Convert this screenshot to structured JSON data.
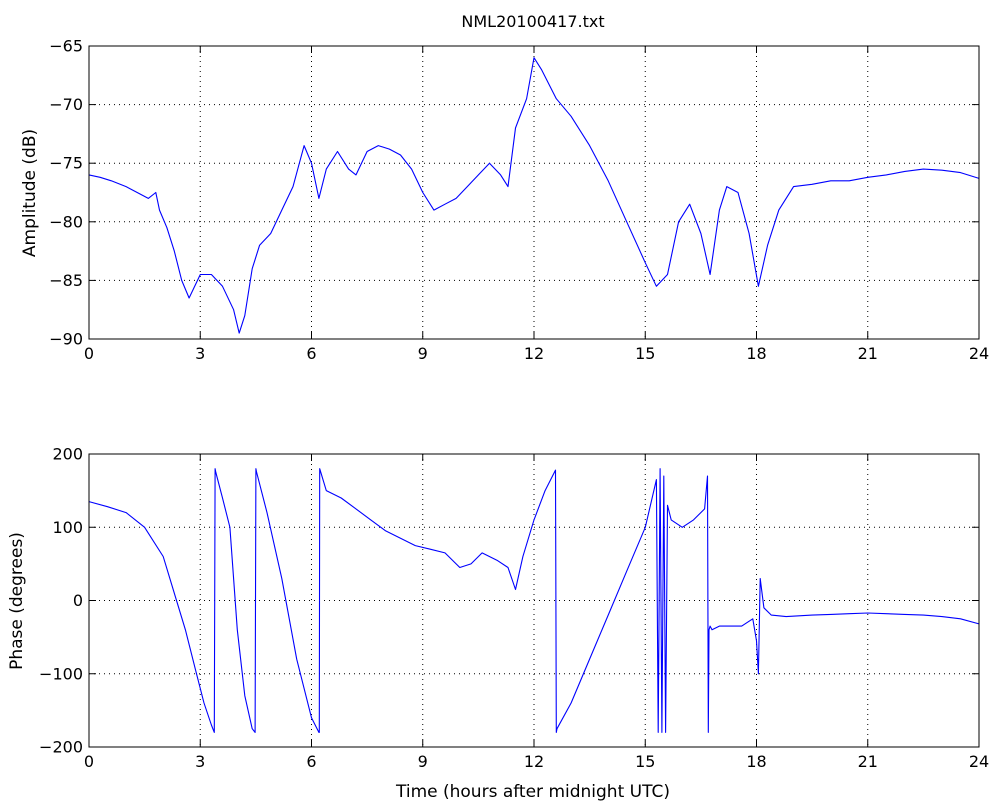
{
  "chart_data": [
    {
      "type": "line",
      "title": "NML20100417.txt",
      "xlabel": "",
      "ylabel": "Amplitude (dB)",
      "xlim": [
        0,
        24
      ],
      "ylim": [
        -90,
        -65
      ],
      "xticks": [
        0,
        3,
        6,
        9,
        12,
        15,
        18,
        21,
        24
      ],
      "yticks": [
        -90,
        -85,
        -80,
        -75,
        -70,
        -65
      ],
      "xtick_labels": [
        "0",
        "3",
        "6",
        "9",
        "12",
        "15",
        "18",
        "21",
        "24"
      ],
      "ytick_labels": [
        "−90",
        "−85",
        "−80",
        "−75",
        "−70",
        "−65"
      ],
      "grid": true,
      "color": "#0000ff",
      "x": [
        0,
        0.3,
        0.6,
        1.0,
        1.3,
        1.6,
        1.8,
        1.9,
        2.1,
        2.3,
        2.5,
        2.7,
        3.0,
        3.3,
        3.6,
        3.9,
        4.05,
        4.2,
        4.4,
        4.6,
        4.9,
        5.2,
        5.5,
        5.8,
        6.0,
        6.2,
        6.4,
        6.7,
        7.0,
        7.2,
        7.5,
        7.8,
        8.1,
        8.4,
        8.7,
        9.0,
        9.3,
        9.6,
        9.9,
        10.2,
        10.5,
        10.8,
        11.1,
        11.3,
        11.5,
        11.8,
        12.0,
        12.2,
        12.6,
        13.0,
        13.5,
        14.0,
        14.5,
        15.0,
        15.3,
        15.6,
        15.9,
        16.2,
        16.5,
        16.75,
        17.0,
        17.2,
        17.5,
        17.8,
        18.05,
        18.3,
        18.6,
        19.0,
        19.5,
        20.0,
        20.5,
        21.0,
        21.5,
        22.0,
        22.5,
        23.0,
        23.5,
        24.0
      ],
      "y": [
        -76,
        -76.2,
        -76.5,
        -77,
        -77.5,
        -78,
        -77.5,
        -79,
        -80.5,
        -82.5,
        -85,
        -86.5,
        -84.5,
        -84.5,
        -85.5,
        -87.5,
        -89.5,
        -88,
        -84,
        -82,
        -81,
        -79,
        -77,
        -73.5,
        -75,
        -78,
        -75.5,
        -74,
        -75.5,
        -76,
        -74,
        -73.5,
        -73.8,
        -74.3,
        -75.5,
        -77.5,
        -79,
        -78.5,
        -78,
        -77,
        -76,
        -75,
        -76,
        -77,
        -72,
        -69.5,
        -66,
        -67,
        -69.5,
        -71,
        -73.5,
        -76.5,
        -80,
        -83.5,
        -85.5,
        -84.5,
        -80,
        -78.5,
        -81,
        -84.5,
        -79,
        -77,
        -77.5,
        -81,
        -85.5,
        -82,
        -79,
        -77,
        -76.8,
        -76.5,
        -76.5,
        -76.2,
        -76,
        -75.7,
        -75.5,
        -75.6,
        -75.8,
        -76.3
      ]
    },
    {
      "type": "line",
      "title": "",
      "xlabel": "Time (hours after midnight UTC)",
      "ylabel": "Phase (degrees)",
      "xlim": [
        0,
        24
      ],
      "ylim": [
        -200,
        200
      ],
      "xticks": [
        0,
        3,
        6,
        9,
        12,
        15,
        18,
        21,
        24
      ],
      "yticks": [
        -200,
        -100,
        0,
        100,
        200
      ],
      "xtick_labels": [
        "0",
        "3",
        "6",
        "9",
        "12",
        "15",
        "18",
        "21",
        "24"
      ],
      "ytick_labels": [
        "−200",
        "−100",
        "0",
        "100",
        "200"
      ],
      "grid": true,
      "color": "#0000ff",
      "x": [
        0,
        0.5,
        1.0,
        1.5,
        2.0,
        2.3,
        2.6,
        2.9,
        3.1,
        3.3,
        3.38,
        3.4,
        3.42,
        3.6,
        3.8,
        4.0,
        4.2,
        4.4,
        4.48,
        4.5,
        4.52,
        4.8,
        5.2,
        5.6,
        6.0,
        6.2,
        6.21,
        6.22,
        6.4,
        6.8,
        7.2,
        7.6,
        8.0,
        8.4,
        8.8,
        9.2,
        9.6,
        10.0,
        10.3,
        10.6,
        11.0,
        11.3,
        11.5,
        11.7,
        12.0,
        12.3,
        12.58,
        12.6,
        12.62,
        13.0,
        13.5,
        14.0,
        14.5,
        15.0,
        15.3,
        15.35,
        15.4,
        15.45,
        15.5,
        15.55,
        15.6,
        15.7,
        16.0,
        16.3,
        16.6,
        16.68,
        16.7,
        16.72,
        16.75,
        16.8,
        17.0,
        17.3,
        17.6,
        17.9,
        18.0,
        18.05,
        18.1,
        18.2,
        18.4,
        18.8,
        19.5,
        20.0,
        20.5,
        21.0,
        21.5,
        22.0,
        22.5,
        23.0,
        23.5,
        24.0
      ],
      "y": [
        135,
        128,
        120,
        100,
        60,
        10,
        -40,
        -100,
        -140,
        -170,
        -180,
        180,
        175,
        140,
        100,
        -40,
        -130,
        -175,
        -180,
        180,
        175,
        120,
        30,
        -80,
        -160,
        -180,
        -180,
        180,
        150,
        140,
        125,
        110,
        95,
        85,
        75,
        70,
        65,
        45,
        50,
        65,
        55,
        45,
        15,
        60,
        110,
        150,
        178,
        -180,
        -175,
        -140,
        -80,
        -20,
        40,
        100,
        165,
        -180,
        180,
        -180,
        170,
        -180,
        130,
        110,
        100,
        110,
        125,
        170,
        -180,
        -40,
        -35,
        -40,
        -35,
        -35,
        -35,
        -25,
        -55,
        -100,
        30,
        -10,
        -20,
        -22,
        -20,
        -19,
        -18,
        -17,
        -18,
        -19,
        -20,
        -22,
        -25,
        -32
      ]
    }
  ]
}
